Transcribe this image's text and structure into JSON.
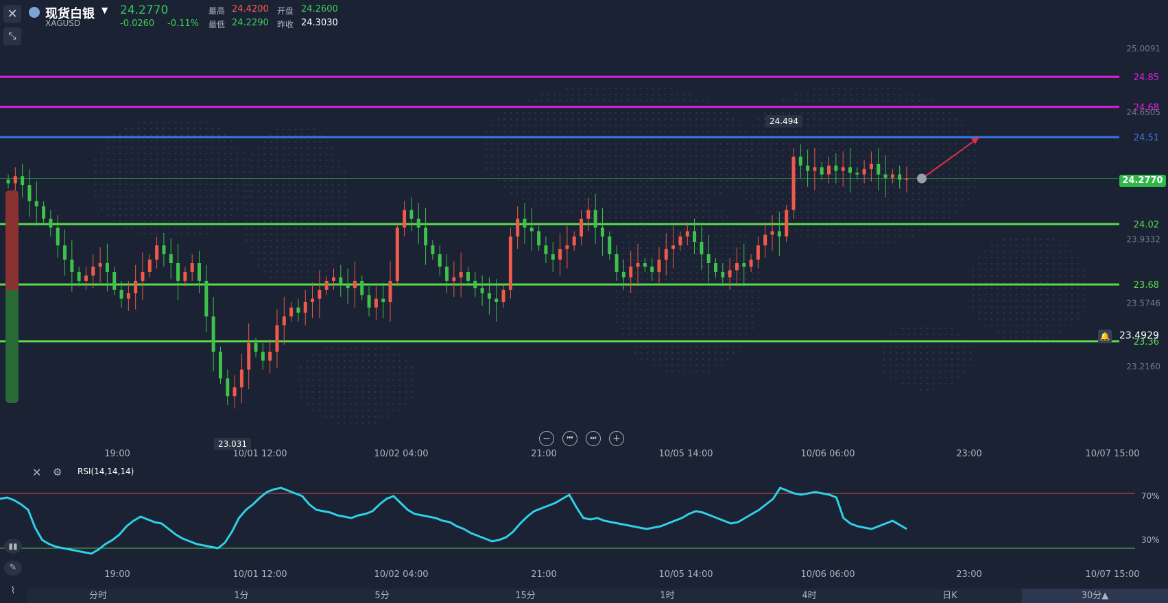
{
  "header": {
    "title": "现货白银",
    "symbol": "XAGUSD",
    "last_price": "24.2770",
    "change": "-0.0260",
    "change_pct": "-0.11%",
    "high_label": "最高",
    "high": "24.4200",
    "open_label": "开盘",
    "open": "24.2600",
    "low_label": "最低",
    "low": "24.2290",
    "prev_close_label": "昨收",
    "prev_close": "24.3030"
  },
  "price_axis": {
    "ticks": [
      "25.0091",
      "24.6505",
      "23.9332",
      "23.5746",
      "23.2160"
    ],
    "current_price_tag": "24.2770",
    "alert_price": "23.4929"
  },
  "hlines": [
    {
      "value": "24.85",
      "color": "#e020e0"
    },
    {
      "value": "24.68",
      "color": "#e020e0"
    },
    {
      "value": "24.51",
      "color": "#3a78e8"
    },
    {
      "value": "24.02",
      "color": "#5bdc4a"
    },
    {
      "value": "23.68",
      "color": "#5bdc4a"
    },
    {
      "value": "23.36",
      "color": "#5bdc4a"
    }
  ],
  "annotations": {
    "high": "24.494",
    "low": "23.031"
  },
  "time_axis": [
    "19:00",
    "10/01 12:00",
    "10/02 04:00",
    "21:00",
    "10/05 14:00",
    "10/06 06:00",
    "23:00",
    "10/07 15:00"
  ],
  "rsi": {
    "label": "RSI(14,14,14)",
    "upper_label": "70%",
    "lower_label": "30%"
  },
  "timeframes": [
    "分时",
    "1分",
    "5分",
    "15分",
    "1时",
    "4时",
    "日K",
    "30分▲"
  ],
  "chart_data": [
    {
      "type": "candlestick",
      "title": "现货白银 XAGUSD",
      "ylim": [
        22.85,
        25.09
      ],
      "candles": [
        24.25,
        24.29,
        24.24,
        24.15,
        24.12,
        24.05,
        24.0,
        23.9,
        23.82,
        23.75,
        23.7,
        23.73,
        23.78,
        23.8,
        23.75,
        23.65,
        23.6,
        23.63,
        23.7,
        23.75,
        23.82,
        23.9,
        23.85,
        23.8,
        23.7,
        23.75,
        23.8,
        23.7,
        23.5,
        23.3,
        23.15,
        23.05,
        23.1,
        23.2,
        23.35,
        23.3,
        23.25,
        23.3,
        23.45,
        23.5,
        23.55,
        23.52,
        23.58,
        23.6,
        23.65,
        23.7,
        23.72,
        23.68,
        23.66,
        23.7,
        23.62,
        23.55,
        23.6,
        23.58,
        23.7,
        24.0,
        24.1,
        24.05,
        24.0,
        23.9,
        23.85,
        23.78,
        23.7,
        23.72,
        23.75,
        23.7,
        23.66,
        23.63,
        23.6,
        23.58,
        23.65,
        23.95,
        24.05,
        24.0,
        23.98,
        23.9,
        23.85,
        23.82,
        23.88,
        23.9,
        23.95,
        24.05,
        24.1,
        24.0,
        23.95,
        23.85,
        23.75,
        23.72,
        23.78,
        23.8,
        23.78,
        23.75,
        23.82,
        23.88,
        23.9,
        23.95,
        23.98,
        23.92,
        23.85,
        23.8,
        23.75,
        23.72,
        23.76,
        23.8,
        23.78,
        23.82,
        23.9,
        23.96,
        23.98,
        23.95,
        24.1,
        24.4,
        24.35,
        24.32,
        24.34,
        24.3,
        24.35,
        24.32,
        24.34,
        24.31,
        24.3,
        24.33,
        24.36,
        24.3,
        24.28,
        24.3,
        24.27,
        24.277
      ],
      "series": [
        {
          "name": "RSI(14,14,14)",
          "ylim": [
            20,
            80
          ],
          "values": [
            66,
            67,
            65,
            62,
            58,
            45,
            36,
            33,
            31,
            30,
            29,
            28,
            27,
            26,
            29,
            33,
            36,
            40,
            46,
            50,
            53,
            51,
            49,
            48,
            44,
            40,
            37,
            35,
            33,
            32,
            31,
            30,
            34,
            42,
            52,
            58,
            62,
            67,
            71,
            73,
            74,
            72,
            70,
            68,
            62,
            58,
            57,
            56,
            54,
            53,
            52,
            54,
            55,
            57,
            62,
            66,
            68,
            63,
            58,
            55,
            54,
            53,
            52,
            50,
            49,
            46,
            44,
            41,
            39,
            37,
            35,
            36,
            38,
            42,
            48,
            53,
            57,
            59,
            61,
            63,
            66,
            69,
            60,
            52,
            51,
            52,
            50,
            49,
            48,
            47,
            46,
            45,
            44,
            45,
            46,
            48,
            50,
            52,
            55,
            57,
            56,
            54,
            52,
            50,
            48,
            49,
            52,
            55,
            58,
            62,
            66,
            74,
            72,
            70,
            69,
            70,
            71,
            70,
            69,
            67,
            52,
            48,
            46,
            45,
            44,
            46,
            48,
            50,
            47,
            44
          ]
        }
      ]
    }
  ]
}
